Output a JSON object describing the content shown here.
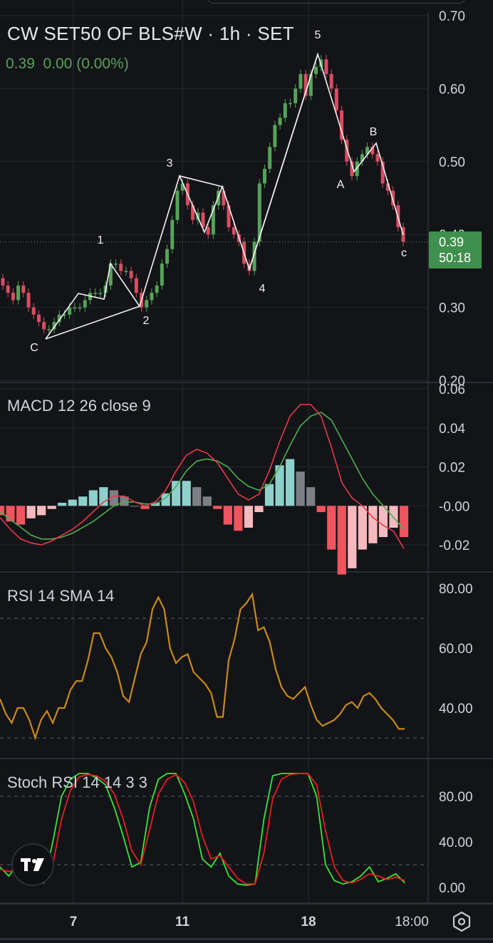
{
  "header": {
    "symbol_title": "CW SET50 OF BLS#W · 1h · SET",
    "quote": "0.39  0.00 (0.00%)"
  },
  "price_tag": {
    "price": "0.39",
    "countdown": "50:18"
  },
  "colors": {
    "up": "#56a35a",
    "down": "#d94d62",
    "accent": "#3f8f4e",
    "grid": "#2a2d35",
    "macd": "#e8394b",
    "signal": "#4caf50",
    "rsi": "#c88a17",
    "stoch_k": "#39e639",
    "stoch_d": "#e81e1e"
  },
  "icons": {
    "logo": "tradingview-logo-icon",
    "settings": "gear-icon"
  },
  "chart_data": [
    {
      "type": "candlestick",
      "title": "CW SET50 OF BLS#W · 1h · SET",
      "y_ticks": [
        "0.70",
        "0.60",
        "0.50",
        "0.40",
        "0.30",
        "0.20"
      ],
      "ylim": [
        0.2,
        0.7
      ],
      "x_ticks": [
        "7",
        "11",
        "18",
        "18:00"
      ],
      "close": [
        0.33,
        0.32,
        0.31,
        0.33,
        0.32,
        0.3,
        0.29,
        0.28,
        0.27,
        0.27,
        0.28,
        0.29,
        0.29,
        0.3,
        0.3,
        0.3,
        0.31,
        0.32,
        0.32,
        0.32,
        0.33,
        0.36,
        0.36,
        0.35,
        0.35,
        0.34,
        0.32,
        0.3,
        0.31,
        0.32,
        0.33,
        0.36,
        0.38,
        0.42,
        0.46,
        0.47,
        0.44,
        0.42,
        0.43,
        0.41,
        0.4,
        0.44,
        0.46,
        0.44,
        0.41,
        0.4,
        0.39,
        0.36,
        0.35,
        0.39,
        0.47,
        0.49,
        0.52,
        0.55,
        0.56,
        0.58,
        0.58,
        0.6,
        0.62,
        0.59,
        0.62,
        0.63,
        0.64,
        0.62,
        0.6,
        0.57,
        0.53,
        0.5,
        0.48,
        0.5,
        0.51,
        0.52,
        0.51,
        0.5,
        0.47,
        0.46,
        0.44,
        0.41,
        0.39
      ],
      "labels": [
        "1",
        "2",
        "3",
        "4",
        "5",
        "A",
        "B",
        "c",
        "C"
      ],
      "current": "0.39"
    },
    {
      "type": "line",
      "title": "MACD 12 26 close 9",
      "y_ticks": [
        "0.06",
        "0.04",
        "0.02",
        "-0.00",
        "-0.02"
      ],
      "ylim": [
        -0.024,
        0.06
      ],
      "series": [
        {
          "name": "MACD",
          "values": [
            -0.006,
            -0.012,
            -0.017,
            -0.019,
            -0.02,
            -0.018,
            -0.015,
            -0.012,
            -0.008,
            -0.003,
            0.002,
            0.005,
            0.005,
            0.002,
            0.0,
            0.002,
            0.008,
            0.018,
            0.026,
            0.029,
            0.027,
            0.022,
            0.014,
            0.006,
            0.003,
            0.006,
            0.018,
            0.033,
            0.046,
            0.052,
            0.052,
            0.046,
            0.03,
            0.012,
            0.004,
            0.0,
            -0.006,
            -0.01,
            -0.013,
            -0.022
          ]
        },
        {
          "name": "Signal",
          "values": [
            -0.003,
            -0.007,
            -0.011,
            -0.015,
            -0.017,
            -0.017,
            -0.016,
            -0.014,
            -0.011,
            -0.008,
            -0.004,
            0.0,
            0.002,
            0.002,
            0.001,
            0.001,
            0.004,
            0.01,
            0.018,
            0.023,
            0.024,
            0.023,
            0.02,
            0.014,
            0.01,
            0.008,
            0.011,
            0.02,
            0.031,
            0.041,
            0.046,
            0.048,
            0.044,
            0.034,
            0.024,
            0.014,
            0.006,
            0.0,
            -0.006,
            -0.012
          ]
        }
      ]
    },
    {
      "type": "line",
      "title": "RSI 14 SMA 14",
      "y_ticks": [
        "80.00",
        "60.00",
        "40.00"
      ],
      "ylim": [
        24,
        85
      ],
      "bands": [
        70,
        30
      ],
      "series": [
        {
          "name": "RSI",
          "values": [
            43,
            38,
            35,
            40,
            40,
            36,
            30,
            36,
            39,
            35,
            40,
            40,
            46,
            49,
            49,
            56,
            65,
            65,
            60,
            57,
            52,
            44,
            42,
            50,
            58,
            62,
            73,
            77,
            73,
            60,
            55,
            57,
            58,
            52,
            50,
            48,
            45,
            37,
            37,
            56,
            63,
            73,
            75,
            78,
            66,
            67,
            62,
            53,
            47,
            44,
            43,
            45,
            47,
            41,
            36,
            34,
            35,
            36,
            38,
            41,
            42,
            40,
            44,
            45,
            43,
            40,
            38,
            36,
            33,
            33
          ]
        }
      ]
    },
    {
      "type": "line",
      "title": "Stoch RSI 14 14 3 3",
      "y_ticks": [
        "80.00",
        "40.00",
        "0.00"
      ],
      "ylim": [
        -5,
        110
      ],
      "bands": [
        80,
        20
      ],
      "series": [
        {
          "name": "K",
          "values": [
            18,
            10,
            20,
            12,
            3,
            4,
            40,
            80,
            95,
            100,
            100,
            96,
            90,
            70,
            45,
            18,
            22,
            70,
            95,
            100,
            100,
            82,
            60,
            25,
            18,
            30,
            10,
            3,
            2,
            3,
            60,
            98,
            100,
            100,
            100,
            100,
            80,
            20,
            6,
            3,
            5,
            10,
            18,
            5,
            8,
            12,
            4
          ]
        },
        {
          "name": "D",
          "values": [
            16,
            14,
            16,
            14,
            8,
            6,
            20,
            60,
            85,
            97,
            99,
            98,
            93,
            82,
            60,
            32,
            20,
            50,
            82,
            95,
            99,
            92,
            75,
            45,
            25,
            28,
            18,
            8,
            3,
            3,
            30,
            78,
            95,
            99,
            100,
            100,
            90,
            50,
            18,
            6,
            4,
            7,
            12,
            10,
            7,
            9,
            6
          ]
        }
      ]
    }
  ]
}
